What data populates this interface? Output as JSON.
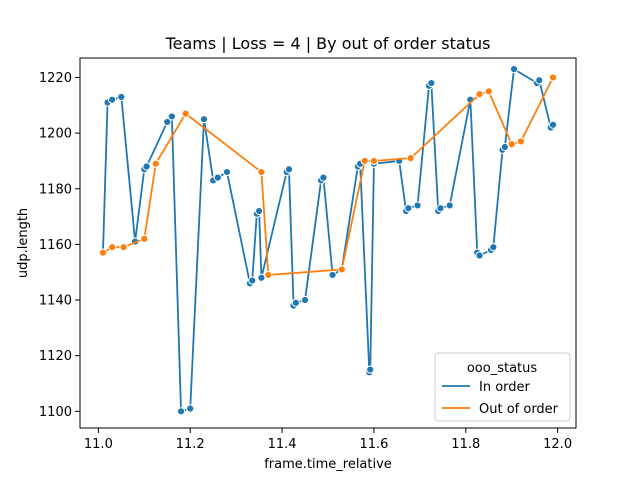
{
  "chart_data": {
    "type": "line",
    "title": "Teams | Loss = 4 | By out of order status",
    "xlabel": "frame.time_relative",
    "ylabel": "udp.length",
    "xlim": [
      10.96,
      12.04
    ],
    "ylim": [
      1094,
      1227
    ],
    "xticks": [
      11.0,
      11.2,
      11.4,
      11.6,
      11.8,
      12.0
    ],
    "xtick_labels": [
      "11.0",
      "11.2",
      "11.4",
      "11.6",
      "11.8",
      "12.0"
    ],
    "yticks": [
      1100,
      1120,
      1140,
      1160,
      1180,
      1200,
      1220
    ],
    "ytick_labels": [
      "1100",
      "1120",
      "1140",
      "1160",
      "1180",
      "1200",
      "1220"
    ],
    "grid": false,
    "legend": {
      "title": "ooo_status",
      "position": "lower-right"
    },
    "series": [
      {
        "name": "In order",
        "color": "#1f77b4",
        "points": [
          [
            11.01,
            1157
          ],
          [
            11.02,
            1211
          ],
          [
            11.03,
            1212
          ],
          [
            11.05,
            1213
          ],
          [
            11.08,
            1161
          ],
          [
            11.1,
            1187
          ],
          [
            11.105,
            1188
          ],
          [
            11.15,
            1204
          ],
          [
            11.16,
            1206
          ],
          [
            11.18,
            1100
          ],
          [
            11.2,
            1101
          ],
          [
            11.23,
            1205
          ],
          [
            11.25,
            1183
          ],
          [
            11.26,
            1184
          ],
          [
            11.28,
            1186
          ],
          [
            11.33,
            1146
          ],
          [
            11.335,
            1147
          ],
          [
            11.345,
            1171
          ],
          [
            11.35,
            1172
          ],
          [
            11.355,
            1148
          ],
          [
            11.41,
            1186
          ],
          [
            11.415,
            1187
          ],
          [
            11.425,
            1138
          ],
          [
            11.43,
            1139
          ],
          [
            11.45,
            1140
          ],
          [
            11.485,
            1183
          ],
          [
            11.49,
            1184
          ],
          [
            11.51,
            1149
          ],
          [
            11.53,
            1151
          ],
          [
            11.565,
            1188
          ],
          [
            11.57,
            1189
          ],
          [
            11.59,
            1114
          ],
          [
            11.592,
            1115
          ],
          [
            11.6,
            1189
          ],
          [
            11.655,
            1190
          ],
          [
            11.67,
            1172
          ],
          [
            11.675,
            1173
          ],
          [
            11.695,
            1174
          ],
          [
            11.72,
            1217
          ],
          [
            11.725,
            1218
          ],
          [
            11.74,
            1172
          ],
          [
            11.745,
            1173
          ],
          [
            11.765,
            1174
          ],
          [
            11.81,
            1212
          ],
          [
            11.825,
            1157
          ],
          [
            11.83,
            1156
          ],
          [
            11.855,
            1158
          ],
          [
            11.86,
            1159
          ],
          [
            11.88,
            1194
          ],
          [
            11.885,
            1195
          ],
          [
            11.905,
            1223
          ],
          [
            11.955,
            1218
          ],
          [
            11.96,
            1219
          ],
          [
            11.985,
            1202
          ],
          [
            11.99,
            1203
          ]
        ]
      },
      {
        "name": "Out of order",
        "color": "#ff7f0e",
        "points": [
          [
            11.01,
            1157
          ],
          [
            11.03,
            1159
          ],
          [
            11.055,
            1159
          ],
          [
            11.1,
            1162
          ],
          [
            11.125,
            1189
          ],
          [
            11.19,
            1207
          ],
          [
            11.355,
            1186
          ],
          [
            11.37,
            1149
          ],
          [
            11.53,
            1151
          ],
          [
            11.58,
            1190
          ],
          [
            11.6,
            1190
          ],
          [
            11.68,
            1191
          ],
          [
            11.83,
            1214
          ],
          [
            11.85,
            1215
          ],
          [
            11.9,
            1196
          ],
          [
            11.92,
            1197
          ],
          [
            11.99,
            1220
          ]
        ]
      }
    ]
  }
}
